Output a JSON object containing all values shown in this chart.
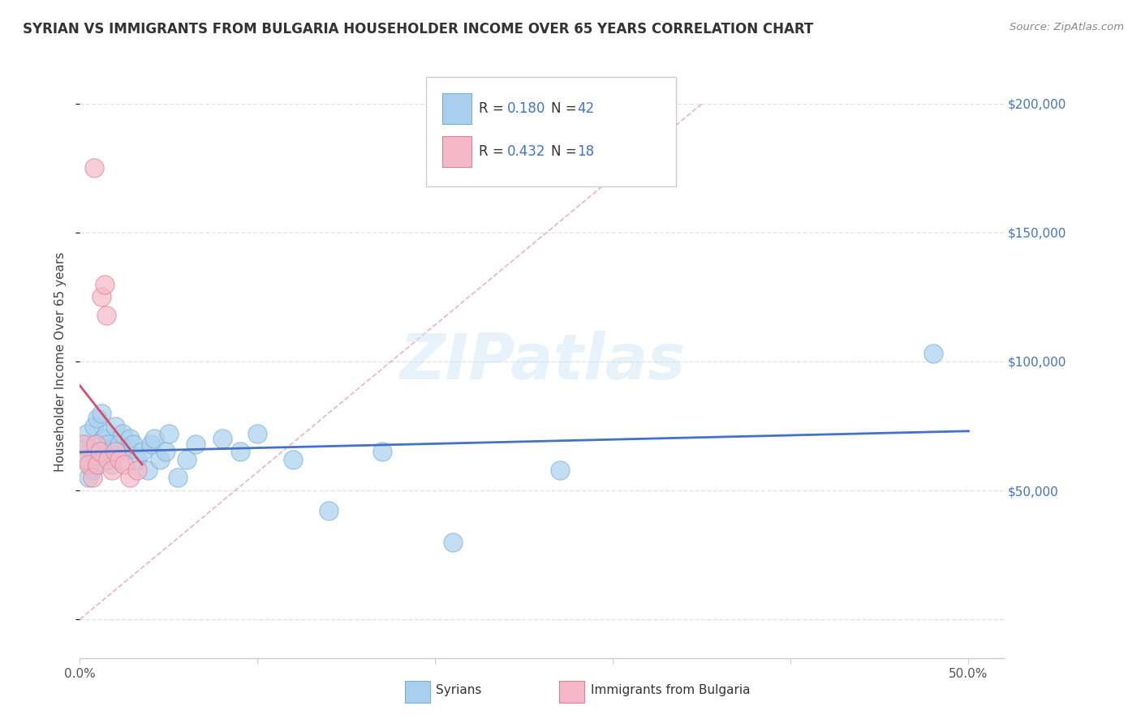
{
  "title": "SYRIAN VS IMMIGRANTS FROM BULGARIA HOUSEHOLDER INCOME OVER 65 YEARS CORRELATION CHART",
  "source": "Source: ZipAtlas.com",
  "ylabel": "Householder Income Over 65 years",
  "background_color": "#ffffff",
  "grid_color": "#dddddd",
  "syrians_color": "#aacfee",
  "syrians_edge_color": "#7aafd4",
  "bulgaria_color": "#f4b8c8",
  "bulgaria_edge_color": "#e08098",
  "line_syrians_color": "#4472c4",
  "line_bulgaria_color": "#d4506a",
  "dash_line_color": "#e8a0b0",
  "legend_R_syrians": "R = 0.180",
  "legend_N_syrians": "N = 42",
  "legend_R_bulgaria": "R = 0.432",
  "legend_N_bulgaria": "N = 18",
  "xlim": [
    0.0,
    0.52
  ],
  "ylim": [
    -15000,
    215000
  ],
  "syrians_x": [
    0.002,
    0.003,
    0.004,
    0.005,
    0.006,
    0.007,
    0.008,
    0.009,
    0.01,
    0.011,
    0.012,
    0.013,
    0.014,
    0.015,
    0.016,
    0.018,
    0.02,
    0.022,
    0.024,
    0.026,
    0.028,
    0.03,
    0.032,
    0.035,
    0.038,
    0.04,
    0.042,
    0.045,
    0.048,
    0.05,
    0.055,
    0.06,
    0.065,
    0.08,
    0.09,
    0.1,
    0.12,
    0.14,
    0.17,
    0.21,
    0.27,
    0.48
  ],
  "syrians_y": [
    68000,
    62000,
    72000,
    55000,
    65000,
    58000,
    75000,
    60000,
    78000,
    64000,
    80000,
    70000,
    65000,
    72000,
    68000,
    60000,
    75000,
    68000,
    72000,
    65000,
    70000,
    68000,
    62000,
    65000,
    58000,
    68000,
    70000,
    62000,
    65000,
    72000,
    55000,
    62000,
    68000,
    70000,
    65000,
    72000,
    62000,
    42000,
    65000,
    30000,
    58000,
    103000
  ],
  "bulgaria_x": [
    0.002,
    0.004,
    0.005,
    0.007,
    0.008,
    0.009,
    0.01,
    0.011,
    0.012,
    0.014,
    0.015,
    0.016,
    0.018,
    0.02,
    0.022,
    0.025,
    0.028,
    0.032
  ],
  "bulgaria_y": [
    68000,
    62000,
    60000,
    55000,
    175000,
    68000,
    60000,
    65000,
    125000,
    130000,
    118000,
    62000,
    58000,
    65000,
    62000,
    60000,
    55000,
    58000
  ]
}
